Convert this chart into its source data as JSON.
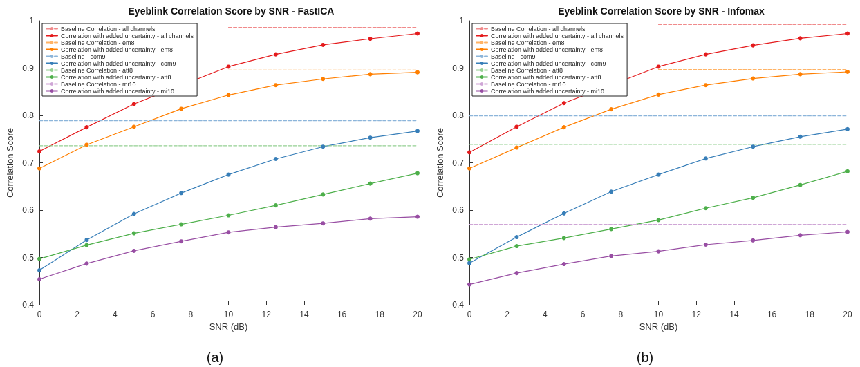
{
  "chart_data": [
    {
      "type": "line",
      "title": "Eyeblink Correlation Score by SNR - FastICA",
      "xlabel": "SNR (dB)",
      "ylabel": "Correlation Score",
      "annotations": [
        "(a)"
      ],
      "x": [
        0,
        2.5,
        5,
        7.5,
        10,
        12.5,
        15,
        17.5,
        20
      ],
      "xlim": [
        0,
        20
      ],
      "xticks": [
        0,
        2,
        4,
        6,
        8,
        10,
        12,
        14,
        16,
        18,
        20
      ],
      "ylim": [
        0.4,
        1
      ],
      "yticks": [
        0.4,
        0.5,
        0.6,
        0.7,
        0.8,
        0.9,
        1
      ],
      "grid": false,
      "legend": "top left",
      "marker": "circle",
      "line_style": "solid",
      "series": [
        {
          "name": "Baseline Correlation - all channels",
          "color": "#f08a8b",
          "values": [
            null,
            null,
            null,
            null,
            0.986,
            0.986,
            0.986,
            0.986,
            0.986
          ],
          "line_style": "dashed",
          "marker": "none"
        },
        {
          "name": "Correlation with added uncertainty - all channels",
          "color": "#e41a1c",
          "values": [
            0.724,
            0.775,
            0.824,
            null,
            0.903,
            0.929,
            0.949,
            0.962,
            0.973
          ]
        },
        {
          "name": "Baseline Correlation - em8",
          "color": "#ffb366",
          "values": [
            null,
            null,
            null,
            null,
            0.896,
            0.896,
            0.896,
            0.896,
            0.896
          ],
          "line_style": "dashed",
          "marker": "none"
        },
        {
          "name": "Correlation with added uncertainty - em8",
          "color": "#ff7f00",
          "values": [
            0.688,
            0.738,
            0.776,
            0.814,
            0.843,
            0.864,
            0.877,
            0.887,
            0.891
          ]
        },
        {
          "name": "Baseline - com9",
          "color": "#8cb5da",
          "values": [
            0.789,
            0.789,
            0.789,
            0.789,
            0.789,
            0.789,
            0.789,
            0.789,
            0.789
          ],
          "line_style": "dashed",
          "marker": "none"
        },
        {
          "name": "Correlation with added uncertainty - com9",
          "color": "#377eb8",
          "values": [
            0.473,
            0.537,
            0.592,
            0.636,
            0.675,
            0.708,
            0.734,
            0.753,
            0.767
          ]
        },
        {
          "name": "Baseline Correlation - att8",
          "color": "#94d092",
          "values": [
            0.736,
            0.736,
            0.736,
            0.736,
            0.736,
            0.736,
            0.736,
            0.736,
            0.736
          ],
          "line_style": "dashed",
          "marker": "none"
        },
        {
          "name": "Correlation with added uncertainty - att8",
          "color": "#4daf4a",
          "values": [
            0.497,
            0.526,
            0.551,
            0.57,
            0.589,
            0.61,
            0.633,
            0.656,
            0.678
          ]
        },
        {
          "name": "Baseline Correlation - mi10",
          "color": "#cfa6d6",
          "values": [
            0.592,
            0.592,
            0.592,
            0.592,
            0.592,
            0.592,
            0.592,
            0.592,
            0.592
          ],
          "line_style": "dashed",
          "marker": "none"
        },
        {
          "name": "Correlation with added uncertainty - mi10",
          "color": "#984ea3",
          "values": [
            0.454,
            0.487,
            0.514,
            0.534,
            0.553,
            0.564,
            0.572,
            0.582,
            0.586
          ]
        }
      ]
    },
    {
      "type": "line",
      "title": "Eyeblink Correlation Score by SNR - Infomax",
      "xlabel": "SNR (dB)",
      "ylabel": "Correlation Score",
      "annotations": [
        "(b)"
      ],
      "x": [
        0,
        2.5,
        5,
        7.5,
        10,
        12.5,
        15,
        17.5,
        20
      ],
      "xlim": [
        0,
        20
      ],
      "xticks": [
        0,
        2,
        4,
        6,
        8,
        10,
        12,
        14,
        16,
        18,
        20
      ],
      "ylim": [
        0.4,
        1
      ],
      "yticks": [
        0.4,
        0.5,
        0.6,
        0.7,
        0.8,
        0.9,
        1
      ],
      "grid": false,
      "legend": "top left",
      "marker": "circle",
      "line_style": "solid",
      "series": [
        {
          "name": "Baseline Correlation - all channels",
          "color": "#f08a8b",
          "values": [
            null,
            null,
            null,
            null,
            0.992,
            0.992,
            0.992,
            0.992,
            0.992
          ],
          "line_style": "dashed",
          "marker": "none"
        },
        {
          "name": "Correlation with added uncertainty - all channels",
          "color": "#e41a1c",
          "values": [
            0.722,
            0.776,
            0.826,
            null,
            0.903,
            0.929,
            0.948,
            0.963,
            0.973
          ]
        },
        {
          "name": "Baseline Correlation - em8",
          "color": "#ffb366",
          "values": [
            null,
            null,
            null,
            null,
            0.897,
            0.897,
            0.897,
            0.897,
            0.897
          ],
          "line_style": "dashed",
          "marker": "none"
        },
        {
          "name": "Correlation with added uncertainty - em8",
          "color": "#ff7f00",
          "values": [
            0.688,
            0.732,
            0.775,
            0.813,
            0.844,
            0.864,
            0.878,
            0.887,
            0.892
          ]
        },
        {
          "name": "Baseline - com9",
          "color": "#8cb5da",
          "values": [
            0.799,
            0.799,
            0.799,
            0.799,
            0.799,
            0.799,
            0.799,
            0.799,
            0.799
          ],
          "line_style": "dashed",
          "marker": "none"
        },
        {
          "name": "Correlation with added uncertainty - com9",
          "color": "#377eb8",
          "values": [
            0.488,
            0.543,
            0.593,
            0.639,
            0.675,
            0.709,
            0.734,
            0.755,
            0.771
          ]
        },
        {
          "name": "Baseline Correlation - att8",
          "color": "#94d092",
          "values": [
            0.739,
            0.739,
            0.739,
            0.739,
            0.739,
            0.739,
            0.739,
            0.739,
            0.739
          ],
          "line_style": "dashed",
          "marker": "none"
        },
        {
          "name": "Correlation with added uncertainty - att8",
          "color": "#4daf4a",
          "values": [
            0.496,
            0.524,
            0.541,
            0.56,
            0.579,
            0.604,
            0.626,
            0.653,
            0.682
          ]
        },
        {
          "name": "Baseline Correlation - mi10",
          "color": "#cfa6d6",
          "values": [
            0.57,
            0.57,
            0.57,
            0.57,
            0.57,
            0.57,
            0.57,
            0.57,
            0.57
          ],
          "line_style": "dashed",
          "marker": "none"
        },
        {
          "name": "Correlation with added uncertainty - mi10",
          "color": "#984ea3",
          "values": [
            0.443,
            0.467,
            0.486,
            0.503,
            0.513,
            0.527,
            0.536,
            0.547,
            0.554
          ]
        }
      ]
    }
  ]
}
